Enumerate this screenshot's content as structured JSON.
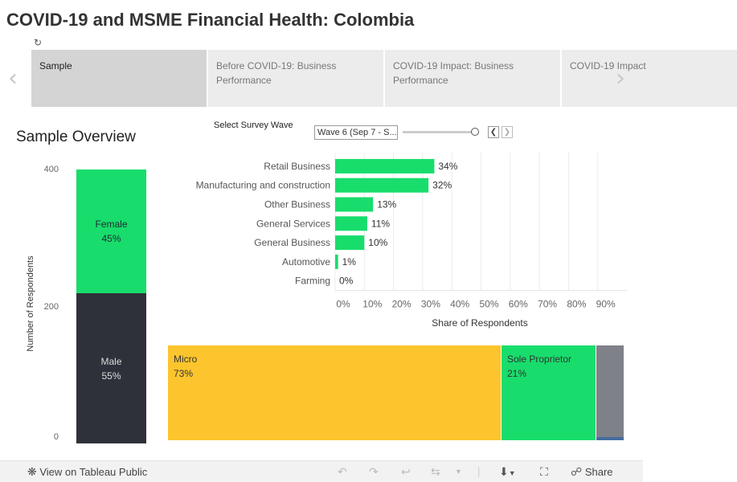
{
  "header": {
    "title": "COVID-19 and MSME Financial Health: Colombia"
  },
  "story": {
    "tabs": [
      {
        "label": "Sample",
        "active": true
      },
      {
        "label": "Before COVID-19: Business Performance",
        "active": false
      },
      {
        "label": "COVID-19 Impact: Business Performance",
        "active": false
      },
      {
        "label": "COVID-19 Impact",
        "active": false
      }
    ]
  },
  "section": {
    "heading": "Sample Overview",
    "wave_label": "Select Survey Wave",
    "wave_value": "Wave 6 (Sep 7 - S..."
  },
  "gender_chart": {
    "y_axis_title": "Number of Respondents",
    "y_ticks": [
      "400",
      "200",
      "0"
    ],
    "segments": [
      {
        "label": "Female",
        "value": "45%"
      },
      {
        "label": "Male",
        "value": "55%"
      }
    ],
    "colors": {
      "female": "#18dd6c",
      "male": "#2e3139"
    }
  },
  "chart_data": {
    "type": "bar",
    "orientation": "horizontal",
    "categories": [
      "Retail Business",
      "Manufacturing and construction",
      "Other Business",
      "General Services",
      "General Business",
      "Automotive",
      "Farming"
    ],
    "values": [
      34,
      32,
      13,
      11,
      10,
      1,
      0
    ],
    "labels": [
      "34%",
      "32%",
      "13%",
      "11%",
      "10%",
      "1%",
      "0%"
    ],
    "xlabel": "Share of Respondents",
    "x_ticks": [
      "0%",
      "10%",
      "20%",
      "30%",
      "40%",
      "50%",
      "60%",
      "70%",
      "80%",
      "90%"
    ],
    "xlim": [
      0,
      100
    ],
    "grid": true,
    "bar_color": "#18dd6c"
  },
  "size_treemap": {
    "cells": [
      {
        "label": "Micro",
        "value": "73%",
        "color": "#fcc52d"
      },
      {
        "label": "Sole Proprietor",
        "value": "21%",
        "color": "#18dd6c"
      }
    ]
  },
  "toolbar": {
    "view_label": "View on Tableau Public",
    "share_label": "Share"
  }
}
